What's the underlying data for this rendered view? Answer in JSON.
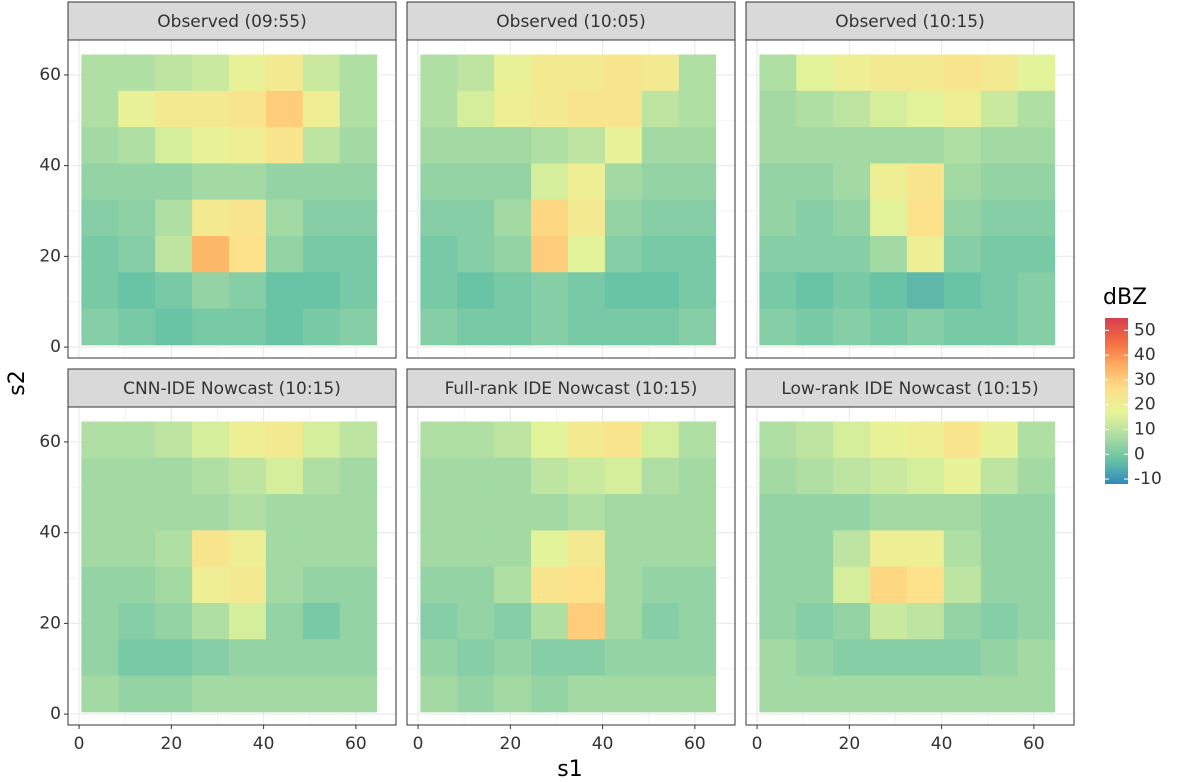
{
  "chart_data": {
    "type": "heatmap",
    "x_label": "s1",
    "y_label": "s2",
    "x": [
      4.5,
      12.5,
      20.5,
      28.5,
      36.5,
      44.5,
      52.5,
      60.5
    ],
    "y": [
      60.5,
      52.5,
      44.5,
      36.5,
      28.5,
      20.5,
      12.5,
      4.5
    ],
    "xlim": [
      -2.4,
      68.7
    ],
    "ylim": [
      -2.4,
      67.7
    ],
    "xticks": [
      0,
      20,
      40,
      60
    ],
    "yticks": [
      0,
      20,
      40,
      60
    ],
    "grid": true,
    "colorbar": {
      "title": "dBZ",
      "lim": [
        -12,
        55
      ],
      "ticks": [
        -10,
        0,
        10,
        20,
        30,
        40,
        50
      ],
      "colors": [
        "#3288bd",
        "#66c2a5",
        "#abdda4",
        "#e6f598",
        "#fee08b",
        "#fdae61",
        "#f46d43",
        "#d53e4f"
      ]
    },
    "panels": [
      {
        "title": "Observed (09:55)",
        "values": [
          [
            8,
            8,
            10,
            12,
            18,
            22,
            12,
            8
          ],
          [
            8,
            18,
            22,
            22,
            24,
            30,
            20,
            8
          ],
          [
            6,
            8,
            14,
            18,
            20,
            24,
            10,
            6
          ],
          [
            4,
            4,
            4,
            6,
            6,
            4,
            4,
            4
          ],
          [
            2,
            3,
            8,
            22,
            24,
            6,
            2,
            2
          ],
          [
            0,
            2,
            10,
            34,
            26,
            4,
            0,
            0
          ],
          [
            0,
            -2,
            0,
            4,
            2,
            -2,
            -2,
            0
          ],
          [
            2,
            0,
            -2,
            0,
            0,
            -2,
            0,
            2
          ]
        ]
      },
      {
        "title": "Observed (10:05)",
        "values": [
          [
            8,
            10,
            18,
            22,
            22,
            24,
            22,
            8
          ],
          [
            8,
            14,
            20,
            22,
            24,
            24,
            10,
            8
          ],
          [
            6,
            6,
            6,
            8,
            10,
            18,
            6,
            6
          ],
          [
            4,
            4,
            4,
            14,
            20,
            6,
            4,
            4
          ],
          [
            2,
            2,
            6,
            28,
            22,
            4,
            2,
            2
          ],
          [
            0,
            2,
            4,
            30,
            16,
            2,
            0,
            0
          ],
          [
            0,
            -2,
            0,
            2,
            0,
            -2,
            -2,
            0
          ],
          [
            2,
            0,
            0,
            2,
            0,
            0,
            0,
            2
          ]
        ]
      },
      {
        "title": "Observed (10:15)",
        "values": [
          [
            8,
            16,
            20,
            22,
            22,
            24,
            22,
            16
          ],
          [
            6,
            8,
            10,
            14,
            16,
            20,
            12,
            8
          ],
          [
            6,
            6,
            6,
            6,
            6,
            8,
            6,
            6
          ],
          [
            4,
            4,
            6,
            20,
            24,
            6,
            4,
            4
          ],
          [
            4,
            2,
            4,
            16,
            26,
            4,
            2,
            2
          ],
          [
            2,
            2,
            2,
            6,
            20,
            2,
            0,
            0
          ],
          [
            0,
            -2,
            0,
            -2,
            -4,
            -2,
            0,
            2
          ],
          [
            2,
            0,
            2,
            0,
            2,
            0,
            0,
            2
          ]
        ]
      },
      {
        "title": "CNN-IDE Nowcast (10:15)",
        "values": [
          [
            8,
            8,
            10,
            14,
            20,
            22,
            14,
            10
          ],
          [
            6,
            6,
            6,
            8,
            10,
            14,
            8,
            6
          ],
          [
            6,
            6,
            6,
            6,
            8,
            6,
            6,
            6
          ],
          [
            6,
            6,
            8,
            24,
            20,
            6,
            6,
            6
          ],
          [
            4,
            4,
            6,
            20,
            22,
            6,
            4,
            4
          ],
          [
            4,
            2,
            4,
            8,
            14,
            4,
            0,
            4
          ],
          [
            4,
            0,
            0,
            2,
            4,
            4,
            4,
            4
          ],
          [
            6,
            4,
            4,
            6,
            6,
            6,
            6,
            6
          ]
        ]
      },
      {
        "title": "Full-rank IDE Nowcast (10:15)",
        "values": [
          [
            8,
            8,
            10,
            16,
            22,
            24,
            14,
            8
          ],
          [
            6,
            6,
            6,
            10,
            12,
            14,
            8,
            6
          ],
          [
            6,
            6,
            6,
            6,
            8,
            6,
            6,
            6
          ],
          [
            6,
            6,
            6,
            16,
            22,
            6,
            6,
            6
          ],
          [
            4,
            4,
            8,
            24,
            26,
            6,
            4,
            4
          ],
          [
            2,
            4,
            2,
            8,
            30,
            6,
            2,
            4
          ],
          [
            4,
            2,
            4,
            2,
            2,
            4,
            4,
            4
          ],
          [
            6,
            4,
            6,
            4,
            6,
            6,
            6,
            6
          ]
        ]
      },
      {
        "title": "Low-rank IDE Nowcast (10:15)",
        "values": [
          [
            8,
            10,
            14,
            18,
            20,
            24,
            18,
            8
          ],
          [
            6,
            8,
            10,
            12,
            14,
            18,
            10,
            6
          ],
          [
            4,
            4,
            4,
            6,
            6,
            6,
            4,
            4
          ],
          [
            4,
            4,
            10,
            20,
            20,
            8,
            4,
            4
          ],
          [
            4,
            4,
            14,
            28,
            26,
            10,
            4,
            4
          ],
          [
            4,
            2,
            4,
            12,
            10,
            4,
            2,
            4
          ],
          [
            6,
            4,
            2,
            2,
            2,
            2,
            4,
            6
          ],
          [
            6,
            6,
            6,
            6,
            6,
            6,
            6,
            6
          ]
        ]
      }
    ]
  }
}
